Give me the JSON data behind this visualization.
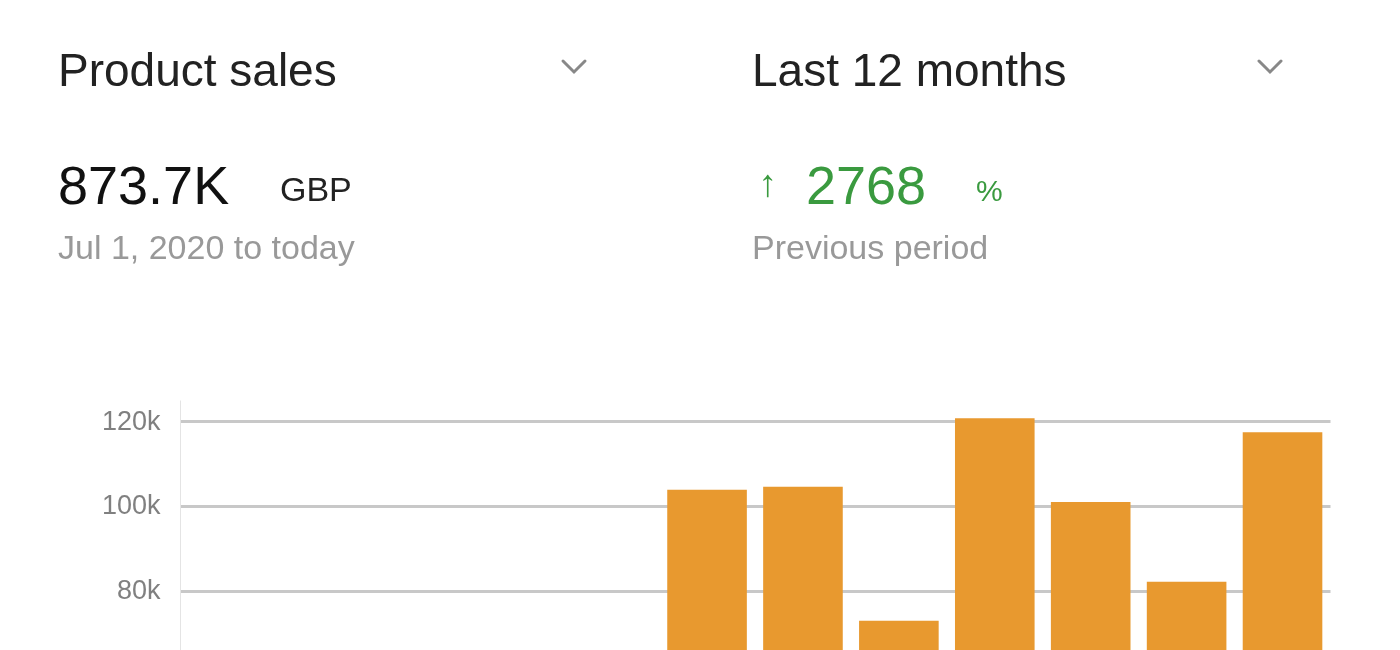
{
  "chart_data": {
    "type": "bar",
    "title": "Product sales",
    "subtitle": "Last 12 months",
    "annotations": [
      "873.7K",
      "GBP",
      "Jul 1, 2020 to today",
      "↑",
      "2768",
      "%",
      "Previous period"
    ],
    "categories": [
      null,
      null,
      null,
      null,
      null,
      null,
      null,
      null,
      null,
      null,
      null,
      null
    ],
    "values": [
      null,
      null,
      null,
      null,
      null,
      103800,
      104500,
      72900,
      120700,
      100900,
      82100,
      117400
    ],
    "color": "#e8992f",
    "ylim": [
      66000,
      125000
    ],
    "yticks": [
      {
        "value": 80000,
        "label": "80k"
      },
      {
        "value": 100000,
        "label": "100k"
      },
      {
        "value": 120000,
        "label": "120k"
      }
    ],
    "grid": "y",
    "tick_labels": "y"
  }
}
